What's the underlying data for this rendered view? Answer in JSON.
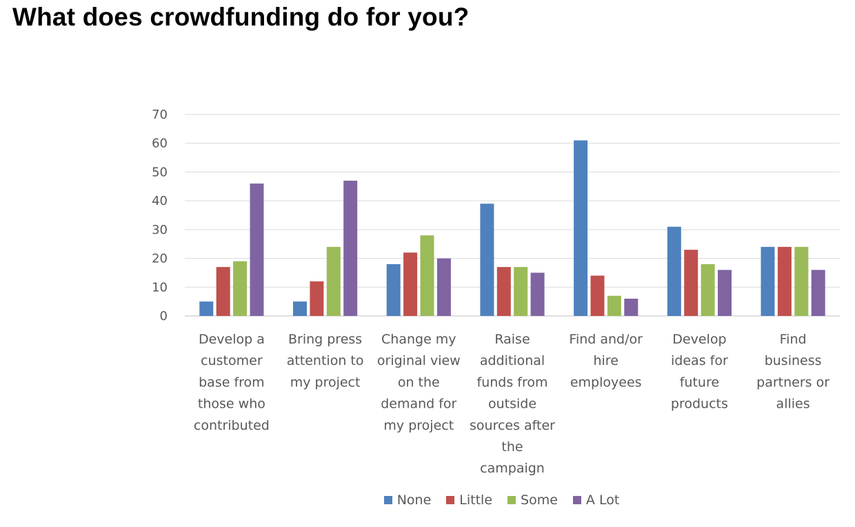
{
  "title": "What does crowdfunding do for you?",
  "chart_data": {
    "type": "bar",
    "title": "",
    "xlabel": "",
    "ylabel": "",
    "ylim": [
      0,
      70
    ],
    "yticks": [
      0,
      10,
      20,
      30,
      40,
      50,
      60,
      70
    ],
    "grid": true,
    "legend_position": "bottom",
    "categories": [
      [
        "Develop a",
        "customer",
        "base from",
        "those who",
        "contributed"
      ],
      [
        "Bring press",
        "attention to",
        "my project"
      ],
      [
        "Change my",
        "original view",
        "on the",
        "demand for",
        "my project"
      ],
      [
        "Raise",
        "additional",
        "funds from",
        "outside",
        "sources after",
        "the",
        "campaign"
      ],
      [
        "Find and/or",
        "hire",
        "employees"
      ],
      [
        "Develop",
        "ideas for",
        "future",
        "products"
      ],
      [
        "Find",
        "business",
        "partners or",
        "allies"
      ]
    ],
    "series": [
      {
        "name": "None",
        "color": "#4f81bd",
        "values": [
          5,
          5,
          18,
          39,
          61,
          31,
          24
        ]
      },
      {
        "name": "Little",
        "color": "#c0504d",
        "values": [
          17,
          12,
          22,
          17,
          14,
          23,
          24
        ]
      },
      {
        "name": "Some",
        "color": "#9bbb59",
        "values": [
          19,
          24,
          28,
          17,
          7,
          18,
          24
        ]
      },
      {
        "name": "A Lot",
        "color": "#8064a2",
        "values": [
          46,
          47,
          20,
          15,
          6,
          16,
          16
        ]
      }
    ]
  }
}
